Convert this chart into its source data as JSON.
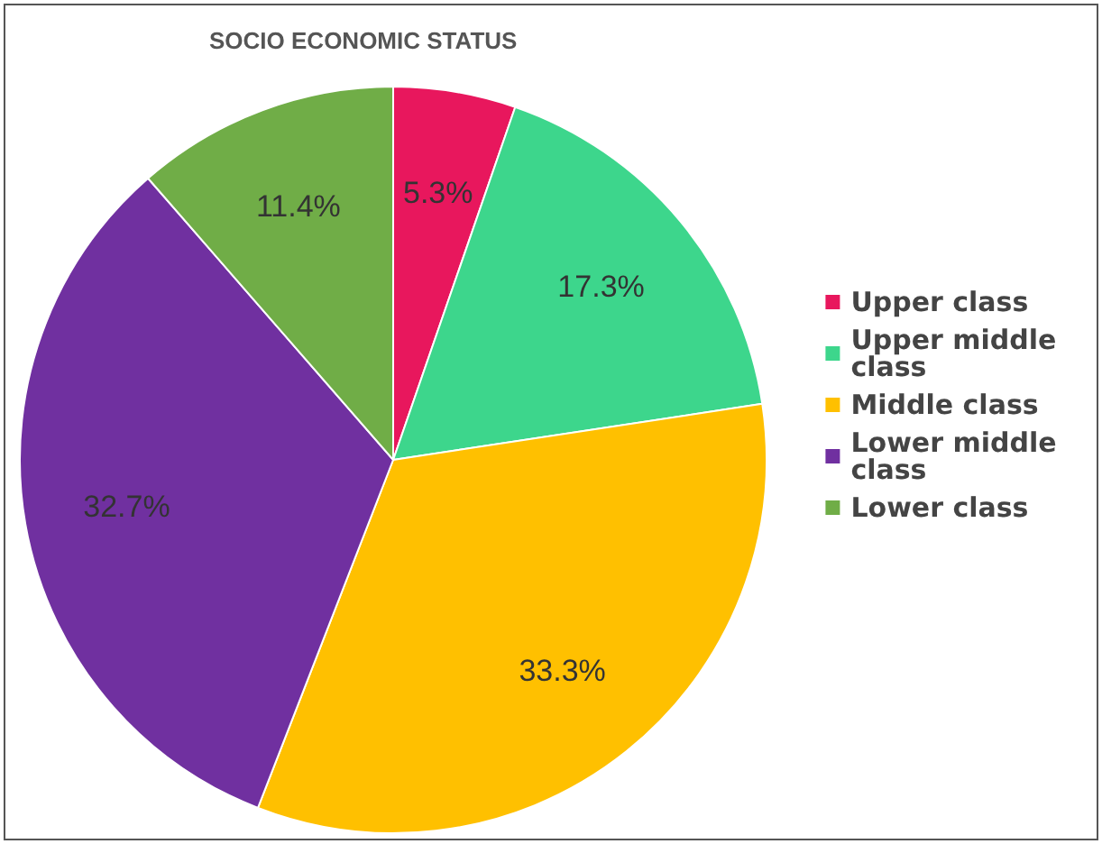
{
  "chart_data": {
    "type": "pie",
    "title": "SOCIO ECONOMIC STATUS",
    "categories": [
      "Upper class",
      "Upper middle class",
      "Middle class",
      "Lower middle class",
      "Lower class"
    ],
    "values": [
      5.3,
      17.3,
      33.3,
      32.7,
      11.4
    ],
    "colors": [
      "#e8175d",
      "#3dd68c",
      "#ffc000",
      "#7030a0",
      "#70ad47"
    ],
    "value_labels": [
      "5.3%",
      "17.3%",
      "33.3%",
      "32.7%",
      "11.4%"
    ],
    "legend": "right"
  }
}
